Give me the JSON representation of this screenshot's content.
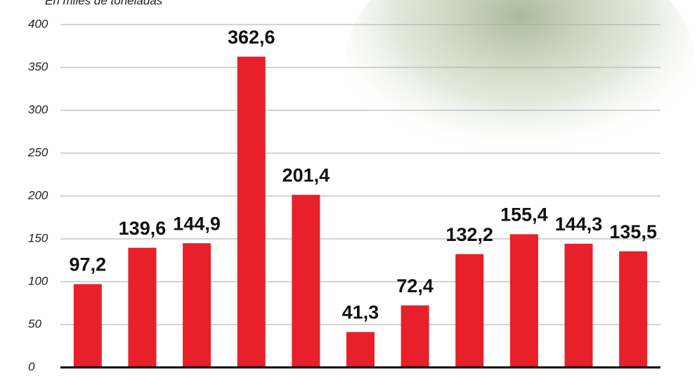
{
  "chart_data": {
    "type": "bar",
    "subtitle": "En miles de toneladas",
    "categories": [
      null,
      null,
      null,
      null,
      null,
      null,
      null,
      null,
      null,
      null,
      null
    ],
    "values": [
      97.2,
      139.6,
      144.9,
      362.6,
      201.4,
      41.3,
      72.4,
      132.2,
      155.4,
      144.3,
      135.5
    ],
    "value_labels": [
      "97,2",
      "139,6",
      "144,9",
      "362,6",
      "201,4",
      "41,3",
      "72,4",
      "132,2",
      "155,4",
      "144,3",
      "135,5"
    ],
    "color": "#e8202a",
    "ylim": [
      0,
      400
    ],
    "yticks": [
      0,
      50,
      100,
      150,
      200,
      250,
      300,
      350,
      400
    ],
    "grid": true
  }
}
